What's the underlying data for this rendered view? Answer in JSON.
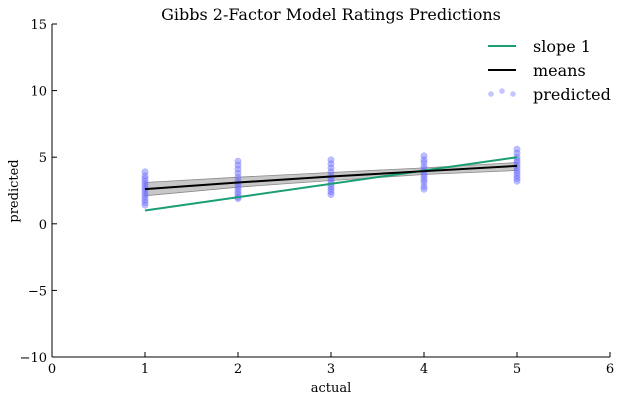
{
  "chart_data": {
    "type": "scatter",
    "title": "Gibbs 2-Factor Model Ratings Predictions",
    "xlabel": "actual",
    "ylabel": "predicted",
    "xlim": [
      0,
      6
    ],
    "ylim": [
      -10,
      15
    ],
    "xticks": [
      "0",
      "1",
      "2",
      "3",
      "4",
      "5",
      "6"
    ],
    "yticks": [
      "−10",
      "−5",
      "0",
      "5",
      "10",
      "15"
    ],
    "xtick_values": [
      0,
      1,
      2,
      3,
      4,
      5,
      6
    ],
    "ytick_values": [
      -10,
      -5,
      0,
      5,
      10,
      15
    ],
    "grid": false,
    "legend_position": "top-right",
    "legend": [
      "slope 1",
      "means",
      "predicted"
    ],
    "colors": {
      "slope_line": "#1a9e76",
      "means_line": "#000000",
      "band": "#bdbdbd",
      "predicted": "#6e6eff"
    },
    "series": [
      {
        "name": "slope 1",
        "type": "line",
        "x": [
          1,
          5
        ],
        "y": [
          1,
          5
        ]
      },
      {
        "name": "means",
        "type": "line",
        "x": [
          1,
          2,
          3,
          4,
          5
        ],
        "y": [
          2.6,
          3.1,
          3.55,
          3.95,
          4.35
        ],
        "band_lower": [
          2.1,
          2.75,
          3.25,
          3.7,
          4.0
        ],
        "band_upper": [
          3.1,
          3.5,
          3.85,
          4.2,
          4.6
        ]
      },
      {
        "name": "predicted",
        "type": "scatter",
        "points": [
          [
            1,
            3.9
          ],
          [
            1,
            3.6
          ],
          [
            1,
            3.4
          ],
          [
            1,
            3.2
          ],
          [
            1,
            3.0
          ],
          [
            1,
            2.8
          ],
          [
            1,
            2.6
          ],
          [
            1,
            2.4
          ],
          [
            1,
            2.2
          ],
          [
            1,
            2.0
          ],
          [
            1,
            1.8
          ],
          [
            1,
            1.6
          ],
          [
            1,
            1.4
          ],
          [
            2,
            4.7
          ],
          [
            2,
            4.4
          ],
          [
            2,
            4.1
          ],
          [
            2,
            3.8
          ],
          [
            2,
            3.5
          ],
          [
            2,
            3.2
          ],
          [
            2,
            3.0
          ],
          [
            2,
            2.8
          ],
          [
            2,
            2.6
          ],
          [
            2,
            2.4
          ],
          [
            2,
            2.2
          ],
          [
            2,
            2.0
          ],
          [
            2,
            1.9
          ],
          [
            3,
            4.8
          ],
          [
            3,
            4.5
          ],
          [
            3,
            4.2
          ],
          [
            3,
            3.9
          ],
          [
            3,
            3.6
          ],
          [
            3,
            3.4
          ],
          [
            3,
            3.2
          ],
          [
            3,
            3.0
          ],
          [
            3,
            2.8
          ],
          [
            3,
            2.6
          ],
          [
            3,
            2.4
          ],
          [
            3,
            2.2
          ],
          [
            4,
            5.1
          ],
          [
            4,
            4.8
          ],
          [
            4,
            4.6
          ],
          [
            4,
            4.3
          ],
          [
            4,
            4.1
          ],
          [
            4,
            3.9
          ],
          [
            4,
            3.7
          ],
          [
            4,
            3.5
          ],
          [
            4,
            3.3
          ],
          [
            4,
            3.1
          ],
          [
            4,
            2.8
          ],
          [
            4,
            2.6
          ],
          [
            5,
            5.6
          ],
          [
            5,
            5.3
          ],
          [
            5,
            5.0
          ],
          [
            5,
            4.8
          ],
          [
            5,
            4.6
          ],
          [
            5,
            4.4
          ],
          [
            5,
            4.2
          ],
          [
            5,
            4.0
          ],
          [
            5,
            3.8
          ],
          [
            5,
            3.6
          ],
          [
            5,
            3.4
          ],
          [
            5,
            3.2
          ]
        ]
      }
    ]
  }
}
